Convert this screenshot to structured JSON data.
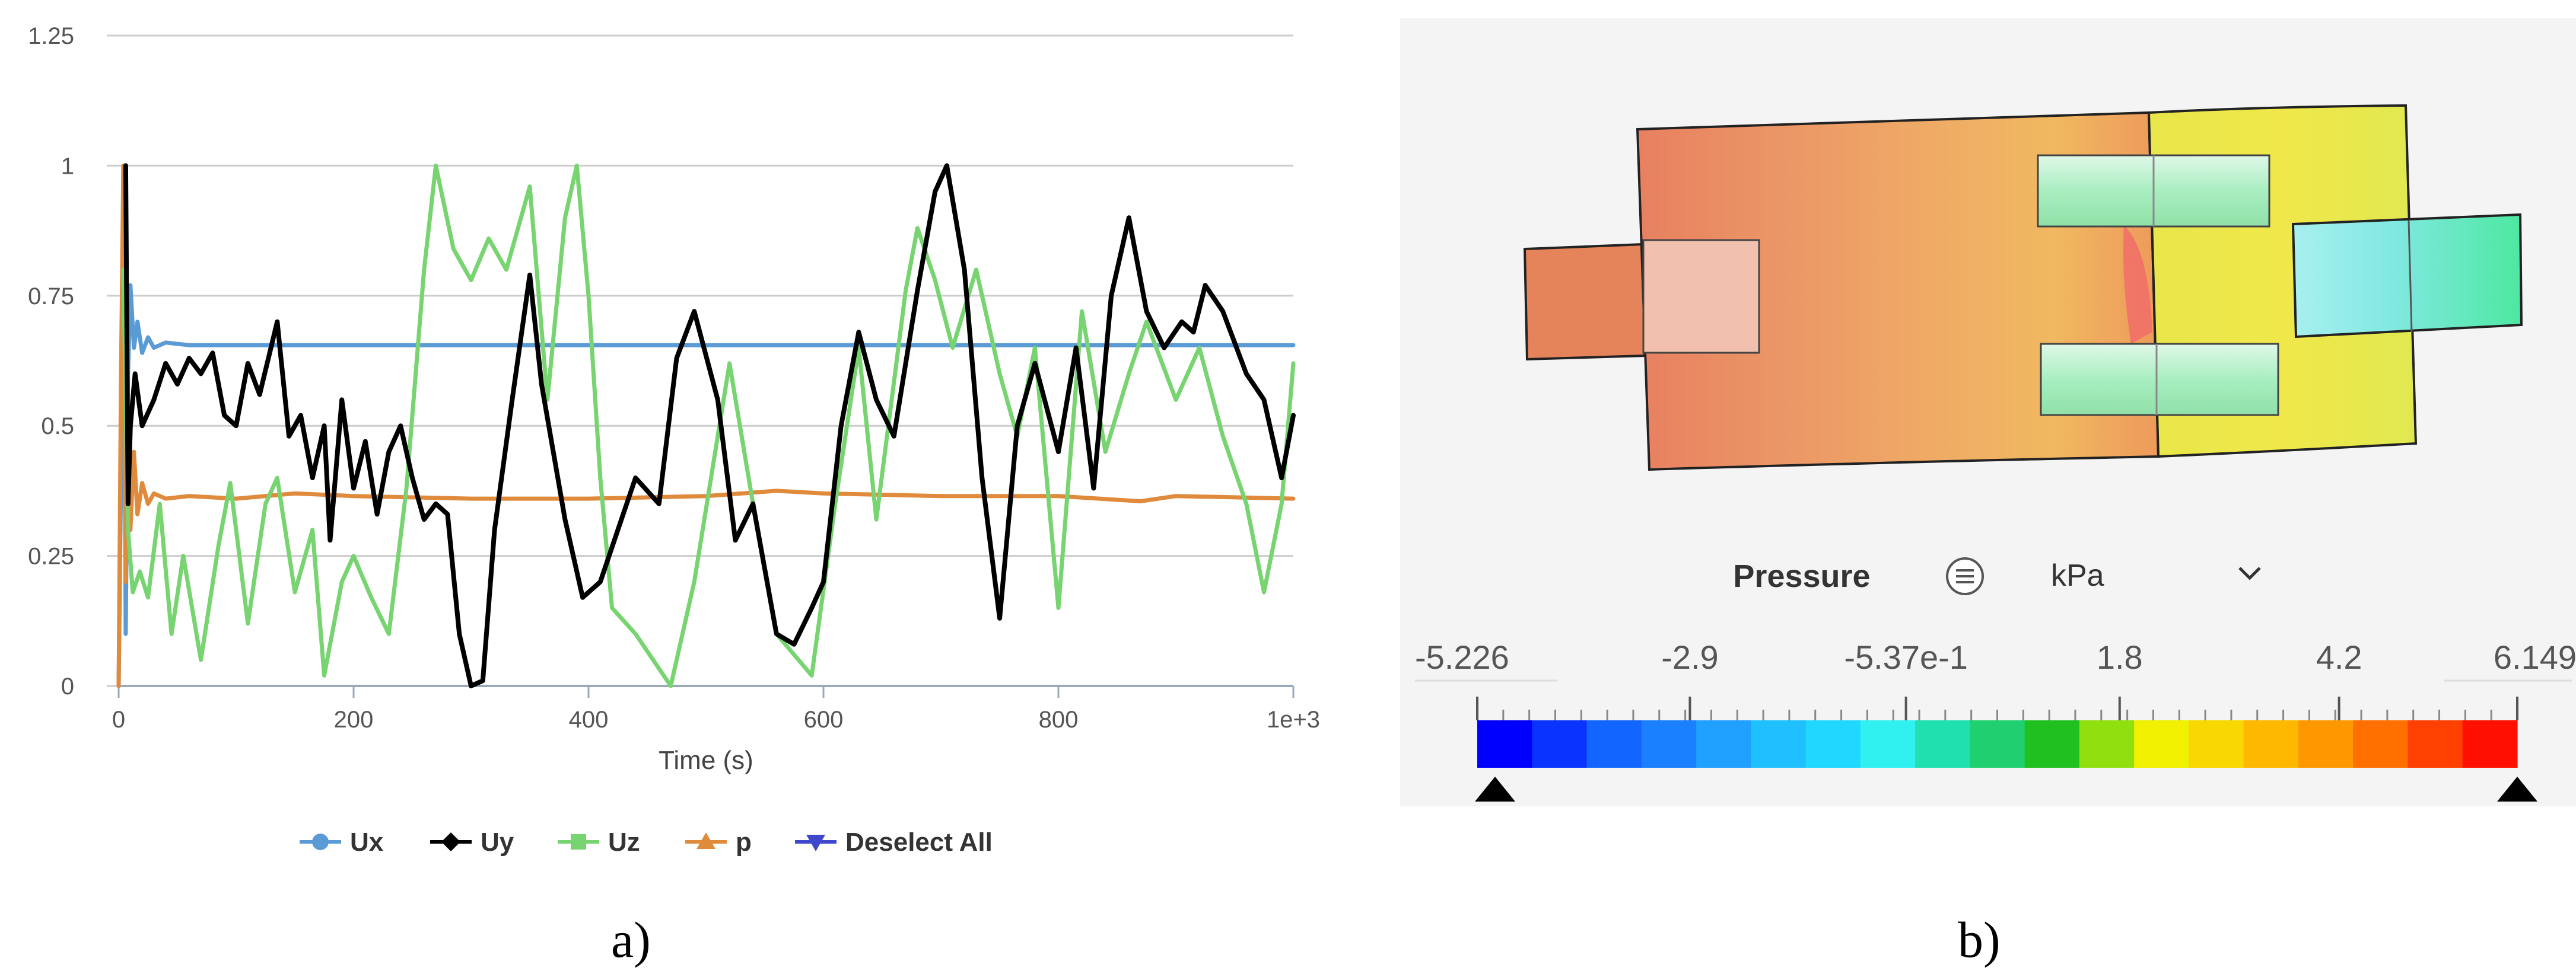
{
  "panels": {
    "a_caption": "a)",
    "b_caption": "b)"
  },
  "chart_data": [
    {
      "type": "line",
      "xlabel": "Time (s)",
      "ylabel": "",
      "xlim": [
        0,
        1000
      ],
      "ylim": [
        0,
        1.25
      ],
      "x_ticks": [
        {
          "value": 0,
          "label": "0"
        },
        {
          "value": 200,
          "label": "200"
        },
        {
          "value": 400,
          "label": "400"
        },
        {
          "value": 600,
          "label": "600"
        },
        {
          "value": 800,
          "label": "800"
        },
        {
          "value": 1000,
          "label": "1e+3"
        }
      ],
      "y_ticks": [
        {
          "value": 0,
          "label": "0"
        },
        {
          "value": 0.25,
          "label": "0.25"
        },
        {
          "value": 0.5,
          "label": "0.5"
        },
        {
          "value": 0.75,
          "label": "0.75"
        },
        {
          "value": 1,
          "label": "1"
        },
        {
          "value": 1.25,
          "label": "1.25"
        }
      ],
      "grid": "horizontal",
      "legend_position": "bottom",
      "legend": [
        {
          "name": "Ux",
          "color": "#5b9bd5",
          "marker": "circle"
        },
        {
          "name": "Uy",
          "color": "#000000",
          "marker": "diamond"
        },
        {
          "name": "Uz",
          "color": "#77d470",
          "marker": "square"
        },
        {
          "name": "p",
          "color": "#e08a3c",
          "marker": "triangle-up"
        },
        {
          "name": "Deselect All",
          "color": "#3f48cc",
          "marker": "triangle-down"
        }
      ],
      "series": [
        {
          "name": "Ux",
          "color": "#5b9bd5",
          "x": [
            0,
            2,
            4,
            6,
            8,
            10,
            13,
            16,
            20,
            25,
            30,
            40,
            60,
            100,
            200,
            300,
            400,
            500,
            600,
            700,
            800,
            900,
            1000
          ],
          "y": [
            0,
            0.4,
            1.0,
            0.1,
            0.6,
            0.77,
            0.65,
            0.7,
            0.64,
            0.67,
            0.65,
            0.66,
            0.655,
            0.655,
            0.655,
            0.655,
            0.655,
            0.655,
            0.655,
            0.655,
            0.655,
            0.655,
            0.655
          ]
        },
        {
          "name": "p",
          "color": "#e08a3c",
          "x": [
            0,
            2,
            4,
            6,
            8,
            10,
            13,
            16,
            20,
            25,
            30,
            40,
            60,
            100,
            150,
            200,
            300,
            400,
            500,
            560,
            600,
            700,
            800,
            870,
            900,
            1000
          ],
          "y": [
            0,
            0.6,
            1.0,
            0.2,
            0.55,
            0.3,
            0.45,
            0.33,
            0.39,
            0.35,
            0.37,
            0.36,
            0.365,
            0.36,
            0.37,
            0.365,
            0.36,
            0.36,
            0.365,
            0.375,
            0.37,
            0.365,
            0.365,
            0.355,
            0.365,
            0.36
          ]
        },
        {
          "name": "Uz",
          "color": "#77d470",
          "x": [
            4,
            8,
            12,
            18,
            25,
            35,
            45,
            55,
            70,
            85,
            95,
            110,
            125,
            135,
            150,
            165,
            175,
            190,
            200,
            215,
            230,
            245,
            260,
            270,
            285,
            300,
            315,
            330,
            350,
            365,
            380,
            390,
            400,
            410,
            420,
            440,
            470,
            490,
            520,
            540,
            560,
            590,
            610,
            630,
            645,
            670,
            680,
            695,
            710,
            730,
            750,
            765,
            780,
            800,
            820,
            840,
            860,
            875,
            900,
            920,
            940,
            960,
            975,
            990,
            1000
          ],
          "y": [
            0.8,
            0.3,
            0.18,
            0.22,
            0.17,
            0.35,
            0.1,
            0.25,
            0.05,
            0.27,
            0.39,
            0.12,
            0.35,
            0.4,
            0.18,
            0.3,
            0.02,
            0.2,
            0.25,
            0.17,
            0.1,
            0.38,
            0.8,
            1.0,
            0.84,
            0.78,
            0.86,
            0.8,
            0.96,
            0.55,
            0.9,
            1.0,
            0.75,
            0.4,
            0.15,
            0.1,
            0.0,
            0.2,
            0.62,
            0.35,
            0.1,
            0.02,
            0.35,
            0.65,
            0.32,
            0.76,
            0.88,
            0.78,
            0.65,
            0.8,
            0.6,
            0.48,
            0.65,
            0.15,
            0.72,
            0.45,
            0.6,
            0.7,
            0.55,
            0.65,
            0.48,
            0.35,
            0.18,
            0.35,
            0.62
          ]
        },
        {
          "name": "Uy",
          "color": "#000000",
          "x": [
            6,
            8,
            10,
            14,
            20,
            30,
            40,
            50,
            60,
            70,
            80,
            90,
            100,
            110,
            120,
            135,
            145,
            155,
            165,
            175,
            180,
            190,
            200,
            210,
            220,
            230,
            240,
            250,
            260,
            270,
            280,
            290,
            300,
            310,
            320,
            335,
            350,
            360,
            380,
            395,
            410,
            425,
            440,
            460,
            475,
            490,
            510,
            525,
            540,
            560,
            575,
            590,
            600,
            615,
            630,
            645,
            660,
            680,
            695,
            705,
            720,
            735,
            750,
            765,
            780,
            800,
            815,
            830,
            845,
            860,
            875,
            890,
            905,
            915,
            925,
            940,
            960,
            975,
            990,
            1000
          ],
          "y": [
            1.0,
            0.35,
            0.5,
            0.6,
            0.5,
            0.55,
            0.62,
            0.58,
            0.63,
            0.6,
            0.64,
            0.52,
            0.5,
            0.62,
            0.56,
            0.7,
            0.48,
            0.52,
            0.4,
            0.5,
            0.28,
            0.55,
            0.38,
            0.47,
            0.33,
            0.45,
            0.5,
            0.4,
            0.32,
            0.35,
            0.33,
            0.1,
            0.0,
            0.01,
            0.3,
            0.55,
            0.79,
            0.58,
            0.32,
            0.17,
            0.2,
            0.3,
            0.4,
            0.35,
            0.63,
            0.72,
            0.55,
            0.28,
            0.35,
            0.1,
            0.08,
            0.15,
            0.2,
            0.5,
            0.68,
            0.55,
            0.48,
            0.76,
            0.95,
            1.0,
            0.8,
            0.4,
            0.13,
            0.5,
            0.62,
            0.45,
            0.65,
            0.38,
            0.75,
            0.9,
            0.72,
            0.65,
            0.7,
            0.68,
            0.77,
            0.72,
            0.6,
            0.55,
            0.4,
            0.52
          ]
        }
      ]
    },
    {
      "type": "colorbar",
      "title": "Pressure",
      "unit": "kPa",
      "range": [
        -5.226,
        6.149
      ],
      "tick_labels": [
        {
          "value": -5.226,
          "label": "-5.226"
        },
        {
          "value": -2.9,
          "label": "-2.9"
        },
        {
          "value": -0.537,
          "label": "-5.37e-1"
        },
        {
          "value": 1.8,
          "label": "1.8"
        },
        {
          "value": 4.2,
          "label": "4.2"
        },
        {
          "value": 6.149,
          "label": "6.149"
        }
      ],
      "colors": [
        "#0000ff",
        "#0a33ff",
        "#1266ff",
        "#1a80ff",
        "#20a0ff",
        "#20c0ff",
        "#20d8ff",
        "#30f0f0",
        "#20e0b0",
        "#20d070",
        "#20c020",
        "#90e010",
        "#f0f000",
        "#f8d800",
        "#ffb800",
        "#ff9800",
        "#ff7000",
        "#ff4000",
        "#ff1000"
      ]
    }
  ],
  "model": {
    "colors": {
      "main_left": "#e8865c",
      "main_mid": "#eea56a",
      "main_right": "#f0e04a",
      "inlet": "#e5835a",
      "inlet_inner": "#f0c0b0",
      "pipe_upper": "#b8f0c8",
      "pipe_lower": "#b8f0b0",
      "outlet": "#4de8a0",
      "outlet_inner": "#a8f0f0",
      "hot_spot": "#f0606a"
    }
  }
}
